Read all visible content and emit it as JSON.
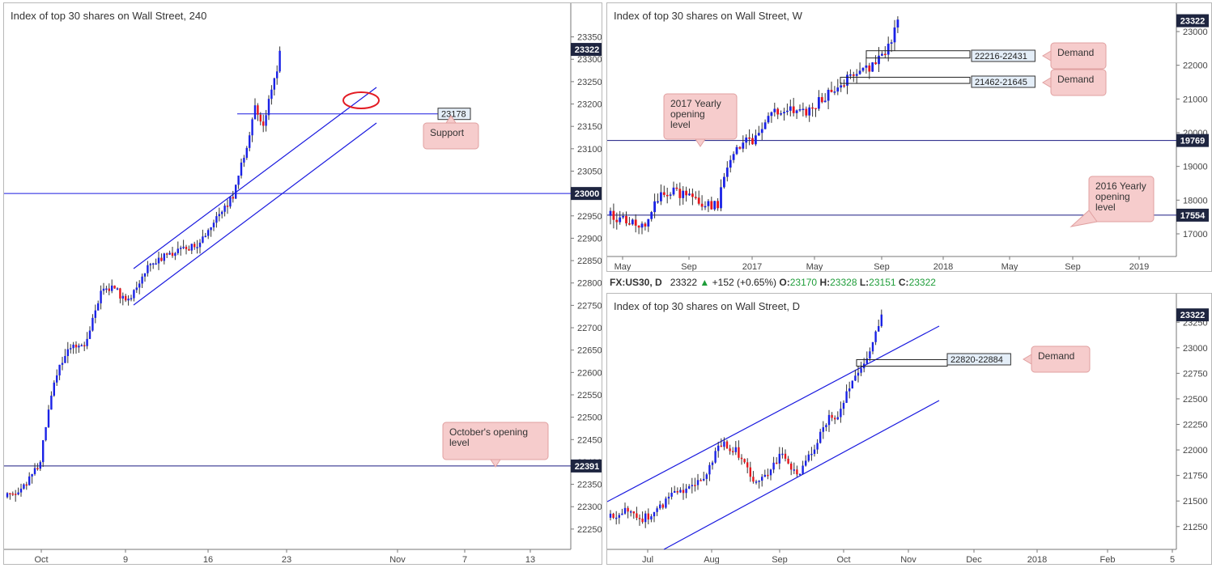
{
  "colors": {
    "up": "#1a22e6",
    "down": "#e8161c",
    "line": "#1a1adf",
    "note_bg": "#f6cccc",
    "note_border": "#e0a0a0",
    "price_tag": "#1e2540"
  },
  "panels": [
    {
      "id": "h4",
      "title": "Index of top 30 shares on Wall Street, 240",
      "price_tag": "23322",
      "chart_data": {
        "type": "candlestick",
        "timeframe": "240",
        "y_ticks": [
          "23350",
          "23300",
          "23250",
          "23200",
          "23150",
          "23100",
          "23050",
          "23000",
          "22950",
          "22900",
          "22850",
          "22800",
          "22750",
          "22700",
          "22650",
          "22600",
          "22550",
          "22500",
          "22450",
          "22400",
          "22350",
          "22300",
          "22250"
        ],
        "x_ticks": [
          "Oct",
          "9",
          "16",
          "23",
          "Nov",
          "7",
          "13"
        ],
        "ylim": [
          22210,
          23380
        ],
        "levels": [
          {
            "price": 23000,
            "label": "23000"
          },
          {
            "price": 22391,
            "label": "22391"
          },
          {
            "price": 23178,
            "label": "23178"
          }
        ],
        "annotations": [
          {
            "text": "Support"
          },
          {
            "text": "October's opening level"
          }
        ],
        "last_close": 23322
      }
    },
    {
      "id": "weekly",
      "title": "Index of top 30 shares on Wall Street, W",
      "price_tag": "23322",
      "chart_data": {
        "type": "candlestick",
        "timeframe": "W",
        "y_ticks": [
          "23000",
          "22000",
          "21000",
          "20000",
          "19000",
          "18000",
          "17000"
        ],
        "x_ticks": [
          "May",
          "Sep",
          "2017",
          "May",
          "Sep",
          "2018",
          "May",
          "Sep",
          "2019"
        ],
        "ylim": [
          16400,
          23600
        ],
        "levels": [
          {
            "price": 19769,
            "label": "19769"
          },
          {
            "price": 17554,
            "label": "17554"
          }
        ],
        "zones": [
          {
            "label": "22216-22431",
            "low": 22216,
            "high": 22431
          },
          {
            "label": "21462-21645",
            "low": 21462,
            "high": 21645
          }
        ],
        "annotations": [
          {
            "text": "Demand"
          },
          {
            "text": "Demand"
          },
          {
            "text": "2017 Yearly opening level"
          },
          {
            "text": "2016 Yearly opening level"
          }
        ],
        "last_close": 23322
      }
    },
    {
      "id": "daily",
      "title": "Index of top 30 shares on Wall Street, D",
      "price_tag": "23322",
      "chart_data": {
        "type": "candlestick",
        "timeframe": "D",
        "y_ticks": [
          "23250",
          "23000",
          "22750",
          "22500",
          "22250",
          "22000",
          "21750",
          "21500",
          "21250"
        ],
        "x_ticks": [
          "Jul",
          "Aug",
          "Sep",
          "Oct",
          "Nov",
          "Dec",
          "2018",
          "Feb",
          "5"
        ],
        "ylim": [
          21050,
          23450
        ],
        "zones": [
          {
            "label": "22820-22884",
            "low": 22820,
            "high": 22884
          }
        ],
        "annotations": [
          {
            "text": "Demand"
          }
        ],
        "last_close": 23322
      }
    }
  ],
  "ohlc_bar": {
    "symbol": "FX:US30, D",
    "price": "23322",
    "change": "+152 (+0.65%)",
    "o_label": "O:",
    "o": "23170",
    "h_label": "H:",
    "h": "23328",
    "l_label": "L:",
    "l": "23151",
    "c_label": "C:",
    "c": "23322"
  }
}
